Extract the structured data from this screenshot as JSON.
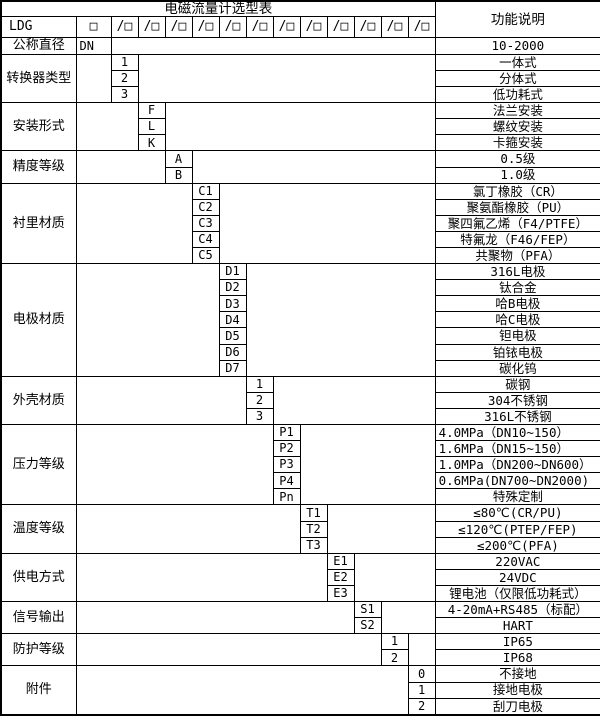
{
  "title": "电磁流量计选型表",
  "function_header": "功能说明",
  "model_row": {
    "prefix": "LDG",
    "base_box": "□",
    "segment_box": "/□",
    "segment_count": 12
  },
  "diameter": {
    "label": "公称直径",
    "code": "DN",
    "function": "10-2000"
  },
  "groups": [
    {
      "label": "转换器类型",
      "options": [
        {
          "code": "1",
          "function": "一体式"
        },
        {
          "code": "2",
          "function": "分体式"
        },
        {
          "code": "3",
          "function": "低功耗式"
        }
      ]
    },
    {
      "label": "安装形式",
      "options": [
        {
          "code": "F",
          "function": "法兰安装"
        },
        {
          "code": "L",
          "function": "螺纹安装"
        },
        {
          "code": "K",
          "function": "卡箍安装"
        }
      ]
    },
    {
      "label": "精度等级",
      "options": [
        {
          "code": "A",
          "function": "0.5级"
        },
        {
          "code": "B",
          "function": "1.0级"
        }
      ]
    },
    {
      "label": "衬里材质",
      "options": [
        {
          "code": "C1",
          "function": "氯丁橡胶（CR）"
        },
        {
          "code": "C2",
          "function": "聚氨酯橡胶（PU）"
        },
        {
          "code": "C3",
          "function": "聚四氟乙烯（F4/PTFE）"
        },
        {
          "code": "C4",
          "function": "特氟龙（F46/FEP）"
        },
        {
          "code": "C5",
          "function": "共聚物（PFA）"
        }
      ]
    },
    {
      "label": "电极材质",
      "options": [
        {
          "code": "D1",
          "function": "316L电极"
        },
        {
          "code": "D2",
          "function": "钛合金"
        },
        {
          "code": "D3",
          "function": "哈B电极"
        },
        {
          "code": "D4",
          "function": "哈C电极"
        },
        {
          "code": "D5",
          "function": "钽电极"
        },
        {
          "code": "D6",
          "function": "铂铱电极"
        },
        {
          "code": "D7",
          "function": "碳化钨"
        }
      ]
    },
    {
      "label": "外壳材质",
      "options": [
        {
          "code": "1",
          "function": "碳钢"
        },
        {
          "code": "2",
          "function": "304不锈钢"
        },
        {
          "code": "3",
          "function": "316L不锈钢"
        }
      ]
    },
    {
      "label": "压力等级",
      "align": "left",
      "options": [
        {
          "code": "P1",
          "function": "4.0MPa（DN10~150）"
        },
        {
          "code": "P2",
          "function": "1.6MPa（DN15~150）"
        },
        {
          "code": "P3",
          "function": "1.0MPa（DN200~DN600）"
        },
        {
          "code": "P4",
          "function": "0.6MPa(DN700~DN2000)"
        },
        {
          "code": "Pn",
          "function": "特殊定制",
          "align": "center"
        }
      ]
    },
    {
      "label": "温度等级",
      "options": [
        {
          "code": "T1",
          "function": "≤80℃(CR/PU)"
        },
        {
          "code": "T2",
          "function": "≤120℃(PTEP/FEP)"
        },
        {
          "code": "T3",
          "function": "≤200℃(PFA)"
        }
      ]
    },
    {
      "label": "供电方式",
      "options": [
        {
          "code": "E1",
          "function": "220VAC"
        },
        {
          "code": "E2",
          "function": "24VDC"
        },
        {
          "code": "E3",
          "function": "锂电池（仅限低功耗式）"
        }
      ]
    },
    {
      "label": "信号输出",
      "options": [
        {
          "code": "S1",
          "function": "4-20mA+RS485（标配）"
        },
        {
          "code": "S2",
          "function": "HART"
        }
      ]
    },
    {
      "label": "防护等级",
      "options": [
        {
          "code": "1",
          "function": "IP65"
        },
        {
          "code": "2",
          "function": "IP68"
        }
      ]
    },
    {
      "label": "附件",
      "options": [
        {
          "code": "0",
          "function": "不接地"
        },
        {
          "code": "1",
          "function": "接地电极"
        },
        {
          "code": "2",
          "function": "刮刀电极"
        }
      ]
    }
  ],
  "colors": {
    "border": "#000000",
    "background": "#ffffff",
    "text": "#000000"
  }
}
